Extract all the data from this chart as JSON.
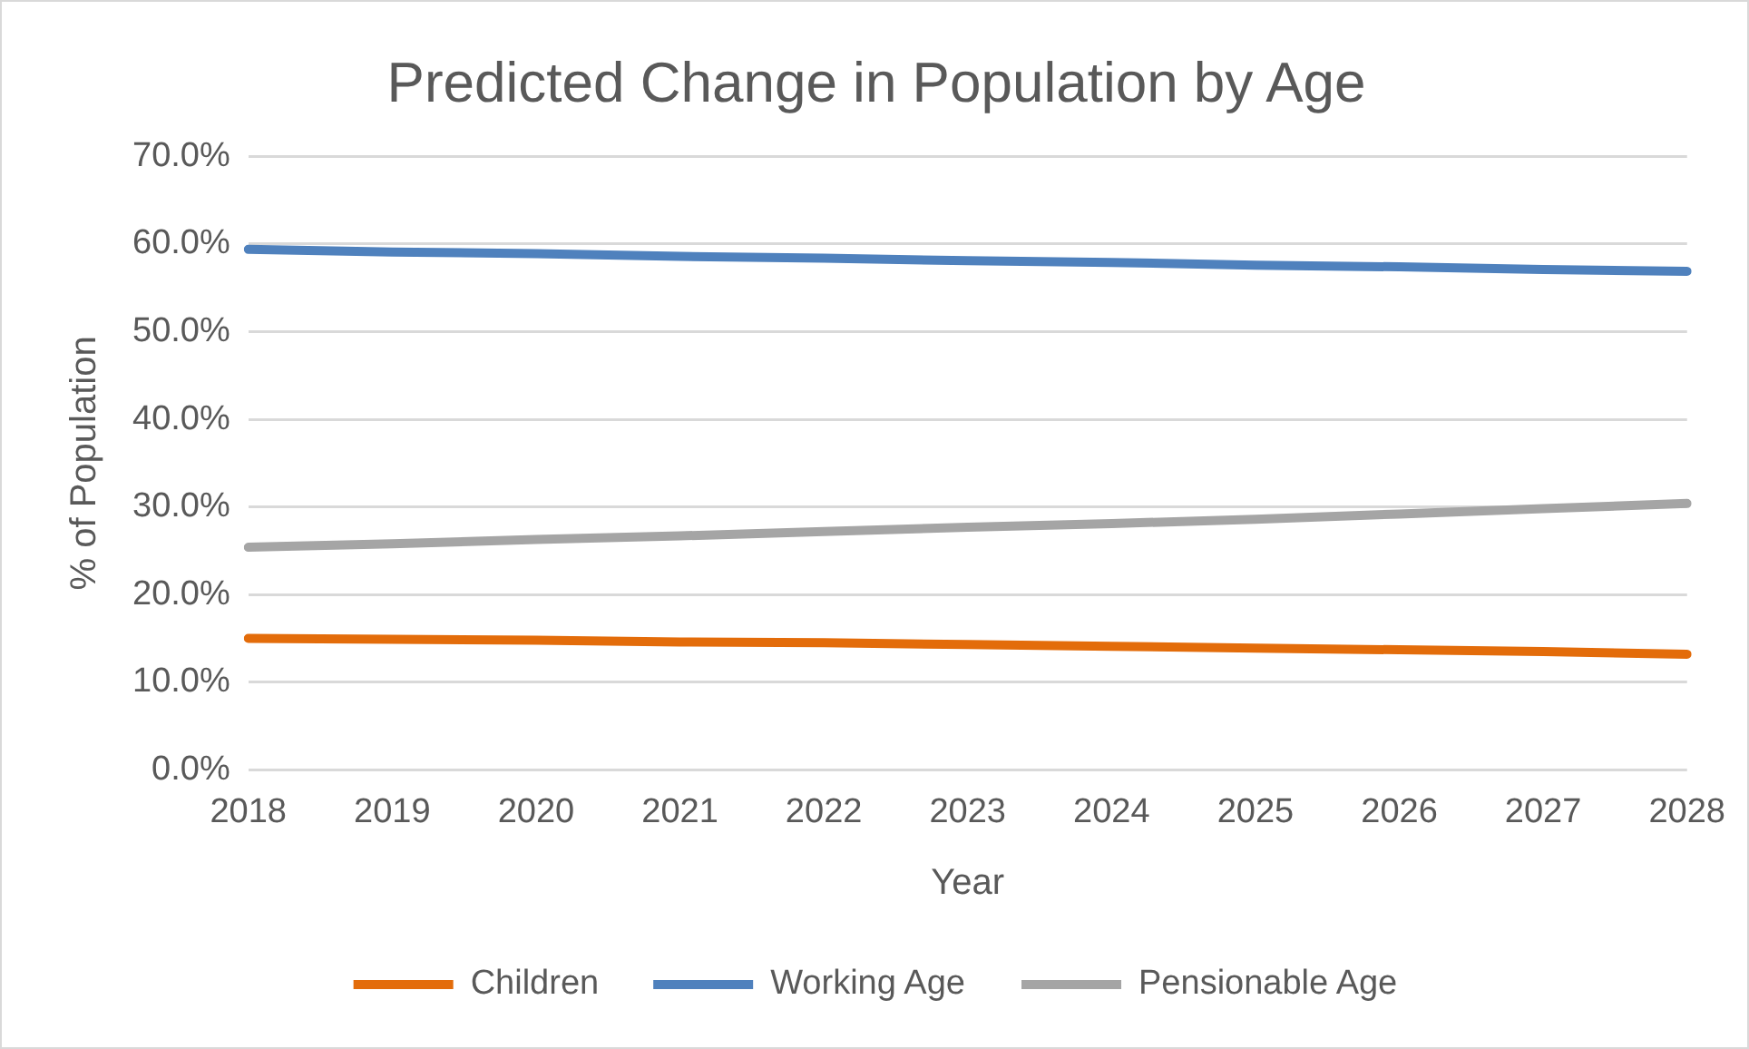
{
  "chart_data": {
    "type": "line",
    "title": "Predicted Change in Population by Age",
    "xlabel": "Year",
    "ylabel": "% of Population",
    "categories": [
      "2018",
      "2019",
      "2020",
      "2021",
      "2022",
      "2023",
      "2024",
      "2025",
      "2026",
      "2027",
      "2028"
    ],
    "series": [
      {
        "name": "Children",
        "color": "#e36c0a",
        "values": [
          15.0,
          14.9,
          14.8,
          14.6,
          14.5,
          14.3,
          14.1,
          13.9,
          13.7,
          13.5,
          13.2
        ]
      },
      {
        "name": "Working Age",
        "color": "#4f81bd",
        "values": [
          59.4,
          59.1,
          58.9,
          58.6,
          58.4,
          58.1,
          57.9,
          57.6,
          57.4,
          57.1,
          56.9
        ]
      },
      {
        "name": "Pensionable Age",
        "color": "#a5a5a5",
        "values": [
          25.4,
          25.8,
          26.3,
          26.7,
          27.2,
          27.7,
          28.1,
          28.6,
          29.2,
          29.8,
          30.4
        ]
      }
    ],
    "ylim": [
      0,
      70
    ],
    "yticks": [
      {
        "value": 0,
        "label": "0.0%"
      },
      {
        "value": 10,
        "label": "10.0%"
      },
      {
        "value": 20,
        "label": "20.0%"
      },
      {
        "value": 30,
        "label": "30.0%"
      },
      {
        "value": 40,
        "label": "40.0%"
      },
      {
        "value": 50,
        "label": "50.0%"
      },
      {
        "value": 60,
        "label": "60.0%"
      },
      {
        "value": 70,
        "label": "70.0%"
      }
    ],
    "grid": "y",
    "legend": "bottom",
    "marker": "none",
    "line_style": "solid"
  }
}
